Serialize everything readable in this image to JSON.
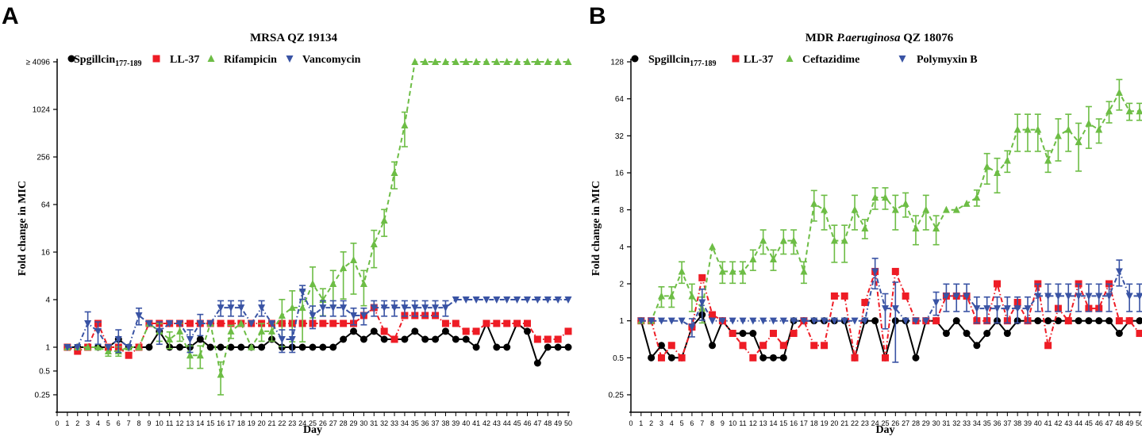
{
  "figure": {
    "letters": [
      "A",
      "B"
    ]
  },
  "colors": {
    "black": "#000000",
    "red": "#ee1c25",
    "green": "#6dbd45",
    "blue": "#3953a4"
  },
  "chart_data": [
    {
      "type": "line",
      "panel": "A",
      "title": "MRSA QZ 19134",
      "title_parts": {
        "pre": "MRSA QZ 19134",
        "italic": "",
        "post": ""
      },
      "xlabel": "Day",
      "ylabel": "Fold change in MIC",
      "xlim": [
        0,
        50
      ],
      "yscale": "log2",
      "ylim": [
        0.25,
        4096
      ],
      "yticks": [
        0.25,
        0.5,
        1,
        4,
        16,
        64,
        256,
        1024,
        4096
      ],
      "ytick_labels": [
        "0.25",
        "0.5",
        "1",
        "4",
        "16",
        "64",
        "256",
        "1024",
        "≥ 4096"
      ],
      "grid": false,
      "legend_position": "top-left",
      "series": [
        {
          "name": "Spgillcin",
          "subscript": "177-189",
          "color": "black",
          "marker": "circle",
          "line": "solid",
          "x": [
            1,
            2,
            3,
            4,
            5,
            6,
            7,
            8,
            9,
            10,
            11,
            12,
            13,
            14,
            15,
            16,
            17,
            18,
            19,
            20,
            21,
            22,
            23,
            24,
            25,
            26,
            27,
            28,
            29,
            30,
            31,
            32,
            33,
            34,
            35,
            36,
            37,
            38,
            39,
            40,
            41,
            42,
            43,
            44,
            45,
            46,
            47,
            48,
            49,
            50
          ],
          "y": [
            1,
            1,
            1,
            1,
            1,
            1.26,
            1,
            1,
            1,
            1.59,
            1,
            1,
            1,
            1.26,
            1,
            1,
            1,
            1,
            1,
            1,
            1.26,
            1,
            1,
            1,
            1,
            1,
            1,
            1.26,
            1.59,
            1.26,
            1.59,
            1.26,
            1.26,
            1.26,
            1.59,
            1.26,
            1.26,
            1.59,
            1.26,
            1.26,
            1,
            2,
            1,
            1,
            2,
            1.59,
            0.63,
            1,
            1,
            1
          ]
        },
        {
          "name": "LL-37",
          "color": "red",
          "marker": "square",
          "line": "dash-dot",
          "x": [
            1,
            2,
            3,
            4,
            5,
            6,
            7,
            8,
            9,
            10,
            11,
            12,
            13,
            14,
            15,
            16,
            17,
            18,
            19,
            20,
            21,
            22,
            23,
            24,
            25,
            26,
            27,
            28,
            29,
            30,
            31,
            32,
            33,
            34,
            35,
            36,
            37,
            38,
            39,
            40,
            41,
            42,
            43,
            44,
            45,
            46,
            47,
            48,
            49,
            50
          ],
          "y": [
            1,
            0.89,
            1,
            2,
            1,
            1,
            0.79,
            1,
            2,
            2,
            2,
            2,
            2,
            2,
            2,
            2,
            2,
            2,
            2,
            2,
            2,
            2,
            2,
            2,
            2,
            2,
            2,
            2,
            2,
            2.52,
            3.17,
            1.59,
            1.26,
            2.52,
            2.52,
            2.52,
            2.52,
            2,
            2,
            1.59,
            1.59,
            2,
            2,
            2,
            2,
            2,
            1.26,
            1.26,
            1.26,
            1.59
          ]
        },
        {
          "name": "Rifampicin",
          "color": "green",
          "marker": "triangle-up",
          "line": "dashed",
          "x": [
            1,
            2,
            3,
            4,
            5,
            6,
            7,
            8,
            9,
            10,
            11,
            12,
            13,
            14,
            15,
            16,
            17,
            18,
            19,
            20,
            21,
            22,
            23,
            24,
            25,
            26,
            27,
            28,
            29,
            30,
            31,
            32,
            33,
            34,
            35,
            36,
            37,
            38,
            39,
            40,
            41,
            42,
            43,
            44,
            45,
            46,
            47,
            48,
            49,
            50
          ],
          "y": [
            1,
            1,
            1,
            1,
            0.89,
            0.89,
            1,
            1,
            2,
            1.59,
            1.26,
            1.59,
            0.79,
            0.79,
            2,
            0.45,
            1.59,
            2,
            1,
            1.59,
            1.59,
            2.52,
            3.17,
            3.17,
            6.35,
            4,
            6.35,
            10.08,
            12.7,
            6.35,
            20.16,
            40.32,
            161.27,
            645.08,
            4096,
            4096,
            4096,
            4096,
            4096,
            4096,
            4096,
            4096,
            4096,
            4096,
            4096,
            4096,
            4096,
            4096,
            4096,
            4096
          ],
          "err": [
            0,
            0,
            0,
            0,
            0.12,
            0.12,
            0,
            0,
            0,
            0.4,
            0.3,
            0.4,
            0.25,
            0.25,
            0,
            0.2,
            0.3,
            0,
            0,
            0.4,
            0.4,
            1.5,
            2,
            2,
            4,
            1.5,
            3,
            6,
            8,
            3,
            10,
            15,
            60,
            300,
            0,
            0,
            0,
            0,
            0,
            0,
            0,
            0,
            0,
            0,
            0,
            0,
            0,
            0,
            0,
            0
          ]
        },
        {
          "name": "Vancomycin",
          "color": "blue",
          "marker": "triangle-down",
          "line": "dash-dot",
          "x": [
            1,
            2,
            3,
            4,
            5,
            6,
            7,
            8,
            9,
            10,
            11,
            12,
            13,
            14,
            15,
            16,
            17,
            18,
            19,
            20,
            21,
            22,
            23,
            24,
            25,
            26,
            27,
            28,
            29,
            30,
            31,
            32,
            33,
            34,
            35,
            36,
            37,
            38,
            39,
            40,
            41,
            42,
            43,
            44,
            45,
            46,
            47,
            48,
            49,
            50
          ],
          "y": [
            1,
            1,
            2,
            1.59,
            1,
            1.26,
            1,
            2.52,
            2,
            1.59,
            2,
            2,
            1.26,
            2,
            2,
            3.17,
            3.17,
            3.17,
            2,
            3.17,
            2,
            1.26,
            1.26,
            5.04,
            2.52,
            3.17,
            3.17,
            3.17,
            2.52,
            2.52,
            3.17,
            3.17,
            3.17,
            3.17,
            3.17,
            3.17,
            3.17,
            3.17,
            4,
            4,
            4,
            4,
            4,
            4,
            4,
            4,
            4,
            4,
            4,
            4
          ],
          "err": [
            0,
            0,
            0.8,
            0.5,
            0,
            0.4,
            0,
            0.6,
            0,
            0.5,
            0,
            0,
            0.4,
            0.6,
            0,
            0.7,
            0.7,
            0.7,
            0,
            0.7,
            0,
            0.4,
            0.4,
            1,
            0.8,
            0.7,
            0.7,
            0.7,
            0.6,
            0.6,
            0.7,
            0.7,
            0.7,
            0.7,
            0.7,
            0.7,
            0.7,
            0.7,
            0,
            0,
            0,
            0,
            0,
            0,
            0,
            0,
            0,
            0,
            0,
            0
          ]
        }
      ]
    },
    {
      "type": "line",
      "panel": "B",
      "title": "MDR P.aeruginosa QZ 18076",
      "title_parts": {
        "pre": "MDR ",
        "italic": "P.aeruginosa",
        "post": " QZ 18076"
      },
      "xlabel": "Day",
      "ylabel": "Fold change in MIC",
      "xlim": [
        0,
        50
      ],
      "yscale": "log2",
      "ylim": [
        0.25,
        128
      ],
      "yticks": [
        0.25,
        0.5,
        1,
        2,
        4,
        8,
        16,
        32,
        64,
        128
      ],
      "ytick_labels": [
        "0.25",
        "0.5",
        "1",
        "2",
        "4",
        "8",
        "16",
        "32",
        "64",
        "128"
      ],
      "grid": false,
      "legend_position": "top-left",
      "series": [
        {
          "name": "Spgillcin",
          "subscript": "177-189",
          "color": "black",
          "marker": "circle",
          "line": "solid",
          "x": [
            1,
            2,
            3,
            4,
            5,
            6,
            7,
            8,
            9,
            10,
            11,
            12,
            13,
            14,
            15,
            16,
            17,
            18,
            19,
            20,
            21,
            22,
            23,
            24,
            25,
            26,
            27,
            28,
            29,
            30,
            31,
            32,
            33,
            34,
            35,
            36,
            37,
            38,
            39,
            40,
            41,
            42,
            43,
            44,
            45,
            46,
            47,
            48,
            49,
            50
          ],
          "y": [
            1,
            0.5,
            0.63,
            0.5,
            0.5,
            0.89,
            1.12,
            0.63,
            1,
            0.79,
            0.79,
            0.79,
            0.5,
            0.5,
            0.5,
            1,
            1,
            1,
            1,
            1,
            1,
            0.5,
            1,
            1,
            0.5,
            1,
            1,
            0.5,
            1,
            1,
            0.79,
            1,
            0.79,
            0.63,
            0.79,
            1,
            0.79,
            1,
            1,
            1,
            1,
            1,
            1,
            1,
            1,
            1,
            1,
            0.79,
            1,
            1
          ]
        },
        {
          "name": "LL-37",
          "color": "red",
          "marker": "square",
          "line": "dash-dot",
          "x": [
            1,
            2,
            3,
            4,
            5,
            6,
            7,
            8,
            9,
            10,
            11,
            12,
            13,
            14,
            15,
            16,
            17,
            18,
            19,
            20,
            21,
            22,
            23,
            24,
            25,
            26,
            27,
            28,
            29,
            30,
            31,
            32,
            33,
            34,
            35,
            36,
            37,
            38,
            39,
            40,
            41,
            42,
            43,
            44,
            45,
            46,
            47,
            48,
            49,
            50
          ],
          "y": [
            1,
            1,
            0.5,
            0.63,
            0.5,
            0.89,
            2.24,
            1.12,
            1,
            0.79,
            0.63,
            0.5,
            0.63,
            0.79,
            0.63,
            0.79,
            1,
            0.63,
            0.63,
            1.59,
            1.59,
            0.5,
            1.41,
            2.52,
            0.5,
            2.52,
            1.59,
            1,
            1,
            1,
            1.59,
            1.59,
            1.59,
            1,
            1,
            2,
            1,
            1.41,
            1,
            2,
            0.63,
            1.26,
            1,
            2,
            1.26,
            1.26,
            2,
            1,
            1,
            0.79
          ]
        },
        {
          "name": "Ceftazidime",
          "color": "green",
          "marker": "triangle-up",
          "line": "dashed",
          "x": [
            1,
            2,
            3,
            4,
            5,
            6,
            7,
            8,
            9,
            10,
            11,
            12,
            13,
            14,
            15,
            16,
            17,
            18,
            19,
            20,
            21,
            22,
            23,
            24,
            25,
            26,
            27,
            28,
            29,
            30,
            31,
            32,
            33,
            34,
            35,
            36,
            37,
            38,
            39,
            40,
            41,
            42,
            43,
            44,
            45,
            46,
            47,
            48,
            49,
            50
          ],
          "y": [
            1,
            1,
            1.59,
            1.59,
            2.52,
            1.59,
            1.26,
            4,
            2.52,
            2.52,
            2.52,
            3.17,
            4.49,
            3.17,
            4.49,
            4.49,
            2.52,
            8.98,
            8,
            4.49,
            4.49,
            8,
            5.66,
            10.08,
            10.08,
            8,
            8.98,
            5.66,
            8,
            5.66,
            8,
            8,
            8.98,
            10.08,
            17.96,
            16,
            20.16,
            35.92,
            35.92,
            35.92,
            20.16,
            32,
            35.92,
            28.51,
            40.32,
            35.92,
            50.8,
            71.84,
            50.8,
            50.8
          ],
          "err": [
            0,
            0,
            0.3,
            0.3,
            0.5,
            0.4,
            0.3,
            0,
            0.5,
            0.5,
            0.5,
            0.6,
            1,
            0.6,
            1,
            1,
            0.5,
            2.5,
            2.5,
            1.5,
            1.5,
            2.5,
            1,
            2,
            2,
            2.5,
            2,
            1.5,
            2.5,
            1.5,
            0,
            0,
            0,
            1.5,
            5,
            5,
            4,
            12,
            12,
            12,
            4,
            12,
            12,
            12,
            15,
            8,
            10,
            20,
            8,
            8
          ]
        },
        {
          "name": "Polymyxin B",
          "color": "blue",
          "marker": "triangle-down",
          "line": "dash-dot",
          "x": [
            1,
            2,
            3,
            4,
            5,
            6,
            7,
            8,
            9,
            10,
            11,
            12,
            13,
            14,
            15,
            16,
            17,
            18,
            19,
            20,
            21,
            22,
            23,
            24,
            25,
            26,
            27,
            28,
            29,
            30,
            31,
            32,
            33,
            34,
            35,
            36,
            37,
            38,
            39,
            40,
            41,
            42,
            43,
            44,
            45,
            46,
            47,
            48,
            49,
            50
          ],
          "y": [
            1,
            1,
            1,
            1,
            1,
            0.89,
            1.41,
            1,
            1,
            1,
            1,
            1,
            1,
            1,
            1,
            1,
            1,
            1,
            1,
            1,
            1,
            1,
            1,
            2.52,
            1.26,
            1.26,
            1,
            1,
            1,
            1.41,
            1.59,
            1.59,
            1.59,
            1.26,
            1.26,
            1.26,
            1.26,
            1.26,
            1.26,
            1.59,
            1.59,
            1.59,
            1.59,
            1.59,
            1.59,
            1.59,
            1.59,
            2.52,
            1.59,
            1.59
          ],
          "err": [
            0,
            0,
            0,
            0,
            0,
            0.15,
            0.4,
            0,
            0,
            0,
            0,
            0,
            0,
            0,
            0,
            0,
            0,
            0,
            0,
            0,
            0,
            0,
            0,
            0.7,
            0.4,
            0.8,
            0,
            0,
            0,
            0.3,
            0.4,
            0.4,
            0.4,
            0.3,
            0.3,
            0.3,
            0.3,
            0.3,
            0.3,
            0.4,
            0.4,
            0.4,
            0.4,
            0.4,
            0.4,
            0.4,
            0.4,
            0.6,
            0.4,
            0.4
          ]
        }
      ]
    }
  ]
}
